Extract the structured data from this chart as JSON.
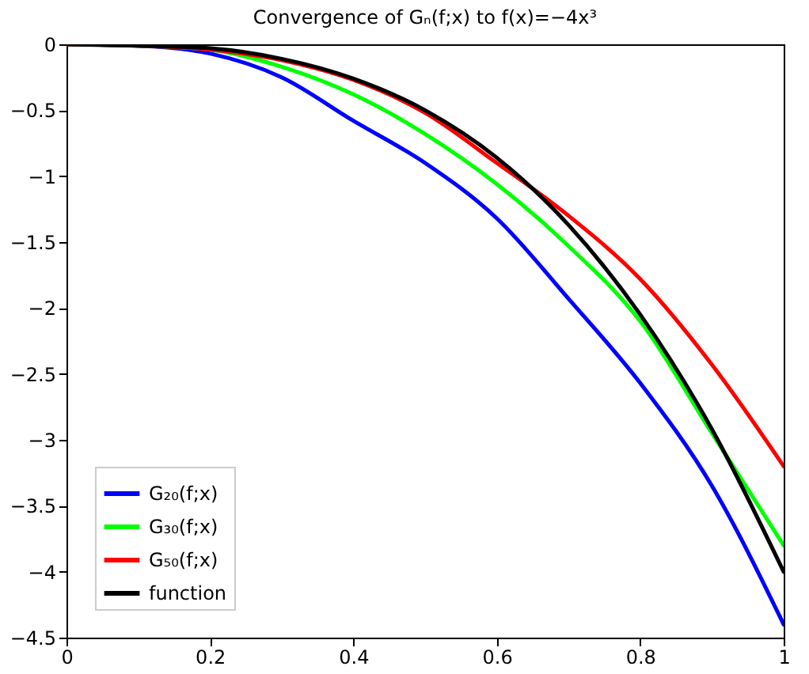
{
  "chart_data": {
    "type": "line",
    "title": "Convergence of Gₙ(f;x) to f(x)=−4x³",
    "xlim": [
      0,
      1
    ],
    "xticks": [
      0,
      0.2,
      0.4,
      0.6,
      0.8,
      1
    ],
    "ylim": [
      -4.5,
      0
    ],
    "yticks": [
      -4.5,
      -4,
      -3.5,
      -3,
      -2.5,
      -2,
      -1.5,
      -1,
      -0.5,
      0
    ],
    "grid": false,
    "legend": "bottom left",
    "marker": "none",
    "line_style": "solid",
    "series": [
      {
        "name": "G₂₀(f;x)",
        "color": "#0000ff",
        "x": [
          0,
          0.1,
          0.2,
          0.3,
          0.4,
          0.5,
          0.6,
          0.7,
          0.8,
          0.9,
          1
        ],
        "values": [
          0,
          -0.01,
          -0.07,
          -0.25,
          -0.58,
          -0.9,
          -1.32,
          -1.93,
          -2.57,
          -3.35,
          -4.4
        ]
      },
      {
        "name": "G₃₀(f;x)",
        "color": "#00ff00",
        "x": [
          0,
          0.1,
          0.2,
          0.3,
          0.4,
          0.5,
          0.6,
          0.7,
          0.8,
          0.9,
          1
        ],
        "values": [
          0,
          -0.01,
          -0.04,
          -0.17,
          -0.38,
          -0.68,
          -1.06,
          -1.53,
          -2.1,
          -2.95,
          -3.8
        ]
      },
      {
        "name": "G₅₀(f;x)",
        "color": "#ff0000",
        "x": [
          0,
          0.1,
          0.2,
          0.3,
          0.4,
          0.5,
          0.6,
          0.7,
          0.8,
          0.9,
          1
        ],
        "values": [
          0,
          -0.01,
          -0.04,
          -0.12,
          -0.27,
          -0.52,
          -0.9,
          -1.3,
          -1.78,
          -2.43,
          -3.2
        ]
      },
      {
        "name": "function",
        "color": "#000000",
        "x": [
          0,
          0.1,
          0.2,
          0.3,
          0.4,
          0.5,
          0.6,
          0.7,
          0.8,
          0.9,
          1
        ],
        "values": [
          0,
          -0.01,
          -0.03,
          -0.11,
          -0.26,
          -0.5,
          -0.86,
          -1.37,
          -2.05,
          -2.92,
          -4
        ]
      }
    ]
  }
}
